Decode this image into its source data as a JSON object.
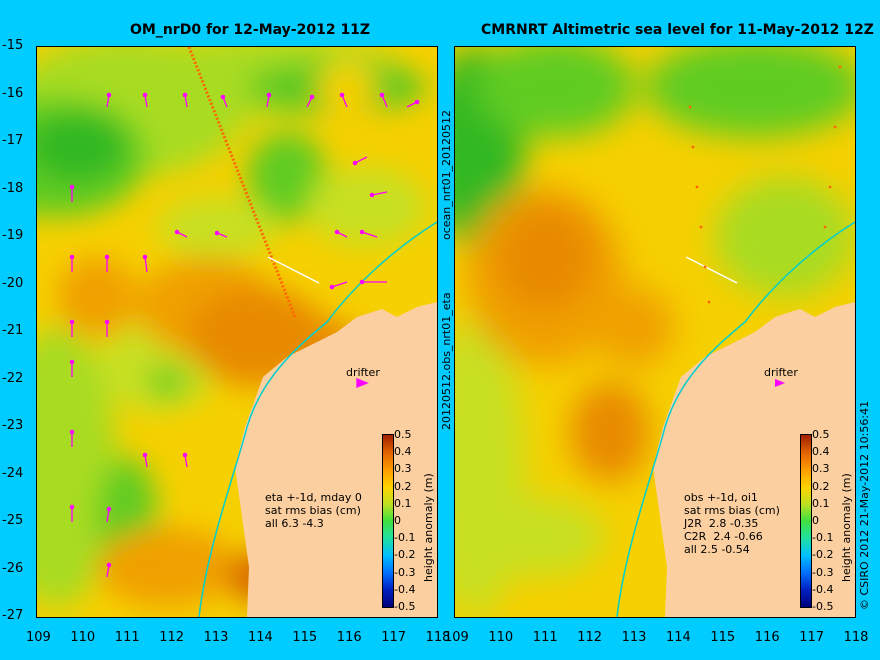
{
  "left": {
    "title": "OM_nrD0 for 12-May-2012 11Z",
    "drifter_label": "drifter",
    "stats_lines": [
      "eta +-1d, mday 0",
      "sat rms bias (cm)",
      "all 6.3 -4.3"
    ],
    "side_label": "ocean_nrt01_20120512"
  },
  "right": {
    "title": "CMRNRT Altimetric sea level  for 11-May-2012 12Z",
    "drifter_label": "drifter",
    "stats_lines": [
      "obs +-1d, oi1",
      "sat rms bias (cm)",
      "J2R  2.8 -0.35",
      "C2R  2.4 -0.66",
      "all 2.5 -0.54"
    ],
    "side_label": "20120512.obs_nrt01_eta"
  },
  "axes": {
    "x_ticks": [
      "109",
      "110",
      "111",
      "112",
      "113",
      "114",
      "115",
      "116",
      "117",
      "118"
    ],
    "y_ticks": [
      "-15",
      "-16",
      "-17",
      "-18",
      "-19",
      "-20",
      "-21",
      "-22",
      "-23",
      "-24",
      "-25",
      "-26",
      "-27"
    ]
  },
  "colorbar": {
    "label": "height anomaly (m)",
    "ticks": [
      "0.5",
      "0.4",
      "0.3",
      "0.2",
      "0.1",
      "0",
      "-0.1",
      "-0.2",
      "-0.3",
      "-0.4",
      "-0.5"
    ]
  },
  "credit": "© CSIRO 2012   21-May-2012 10:56:41",
  "colors": {
    "frame": "#00ccff",
    "land": "#fbcfa0",
    "coastline": "#00cfcf",
    "vectors": "#ff00ff",
    "track": "#ff6600"
  }
}
